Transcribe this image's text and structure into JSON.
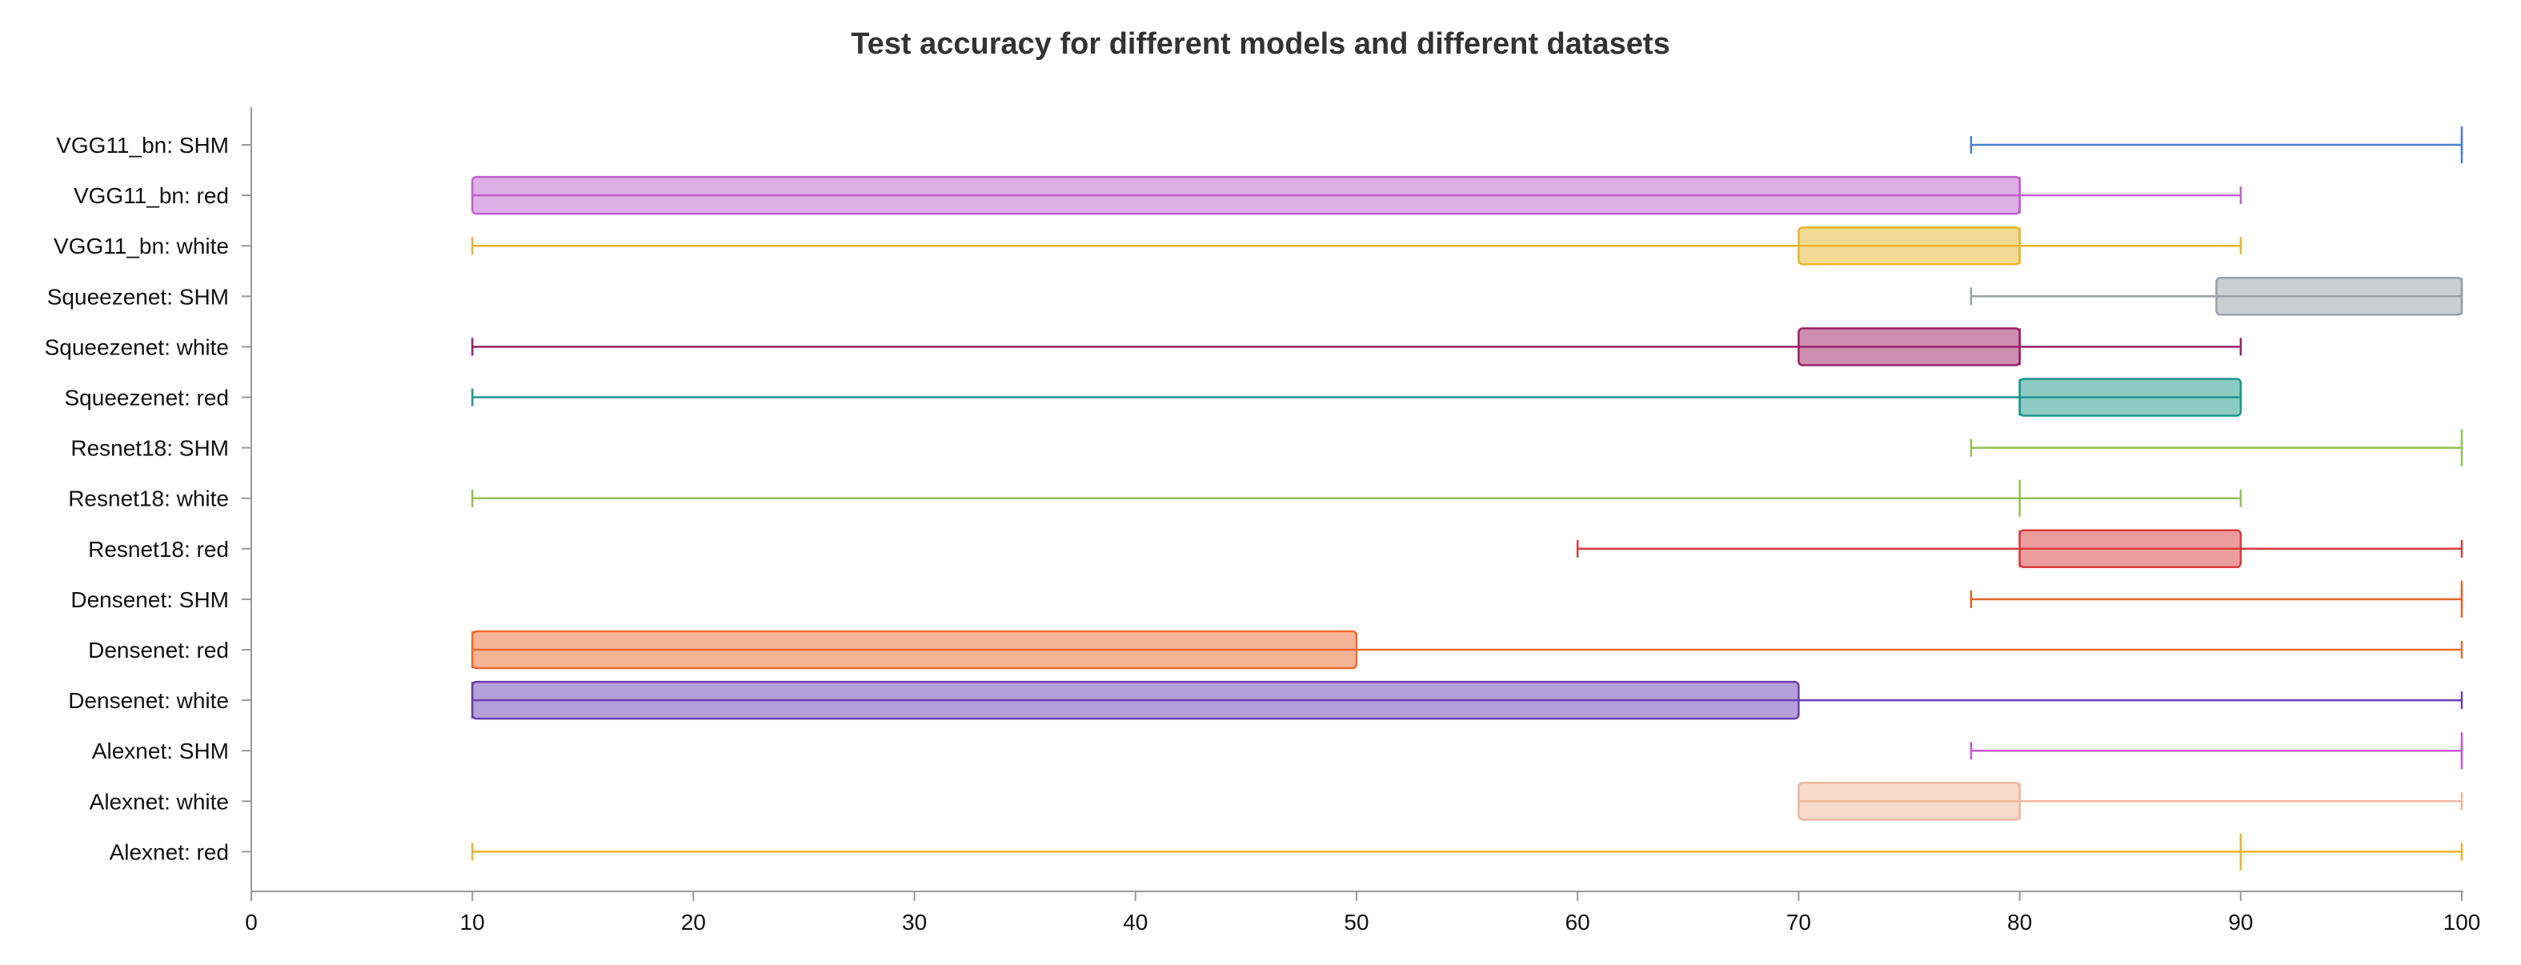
{
  "chart_data": {
    "type": "boxplot",
    "title": "Test accuracy for different models and different datasets",
    "xlabel": "",
    "ylabel": "",
    "xlim": [
      0,
      100
    ],
    "x_ticks": [
      "0",
      "10",
      "20",
      "30",
      "40",
      "50",
      "60",
      "70",
      "80",
      "90",
      "100"
    ],
    "grid": false,
    "orientation": "horizontal",
    "categories": [
      "VGG11_bn: SHM",
      "VGG11_bn: red",
      "VGG11_bn: white",
      "Squeezenet: SHM",
      "Squeezenet: white",
      "Squeezenet: red",
      "Resnet18: SHM",
      "Resnet18: white",
      "Resnet18: red",
      "Densenet: SHM",
      "Densenet: red",
      "Densenet: white",
      "Alexnet: SHM",
      "Alexnet: white",
      "Alexnet: red"
    ],
    "boxes": [
      {
        "label": "VGG11_bn: SHM",
        "min": 77.8,
        "q1": 100,
        "median": 100,
        "q3": 100,
        "max": 100,
        "color": "#4a7fd6"
      },
      {
        "label": "VGG11_bn: red",
        "min": 10,
        "q1": 10,
        "median": 80,
        "q3": 80,
        "max": 90,
        "color": "#c060d0"
      },
      {
        "label": "VGG11_bn: white",
        "min": 10,
        "q1": 70,
        "median": 80,
        "q3": 80,
        "max": 90,
        "color": "#eab42a"
      },
      {
        "label": "Squeezenet: SHM",
        "min": 77.8,
        "q1": 88.9,
        "median": 100,
        "q3": 100,
        "max": 100,
        "color": "#9aa0a6"
      },
      {
        "label": "Squeezenet: white",
        "min": 10,
        "q1": 70,
        "median": 80,
        "q3": 80,
        "max": 90,
        "color": "#9c1f63"
      },
      {
        "label": "Squeezenet: red",
        "min": 10,
        "q1": 80,
        "median": 80,
        "q3": 90,
        "max": 90,
        "color": "#1d968a"
      },
      {
        "label": "Resnet18: SHM",
        "min": 77.8,
        "q1": 100,
        "median": 100,
        "q3": 100,
        "max": 100,
        "color": "#93c254"
      },
      {
        "label": "Resnet18: white",
        "min": 10,
        "q1": 80,
        "median": 80,
        "q3": 80,
        "max": 90,
        "color": "#93c254"
      },
      {
        "label": "Resnet18: red",
        "min": 60,
        "q1": 80,
        "median": 80,
        "q3": 90,
        "max": 100,
        "color": "#d83c3c"
      },
      {
        "label": "Densenet: SHM",
        "min": 77.8,
        "q1": 100,
        "median": 100,
        "q3": 100,
        "max": 100,
        "color": "#e0672a"
      },
      {
        "label": "Densenet: red",
        "min": 10,
        "q1": 10,
        "median": 10,
        "q3": 50,
        "max": 100,
        "color": "#ee6a2e"
      },
      {
        "label": "Densenet: white",
        "min": 10,
        "q1": 10,
        "median": 10,
        "q3": 70,
        "max": 100,
        "color": "#6a3fb0"
      },
      {
        "label": "Alexnet: SHM",
        "min": 77.8,
        "q1": 100,
        "median": 100,
        "q3": 100,
        "max": 100,
        "color": "#c45ad1"
      },
      {
        "label": "Alexnet: white",
        "min": 70,
        "q1": 70,
        "median": 80,
        "q3": 80,
        "max": 100,
        "color": "#f0b89a"
      },
      {
        "label": "Alexnet: red",
        "min": 10,
        "q1": 90,
        "median": 90,
        "q3": 90,
        "max": 100,
        "color": "#eab42a"
      }
    ]
  }
}
